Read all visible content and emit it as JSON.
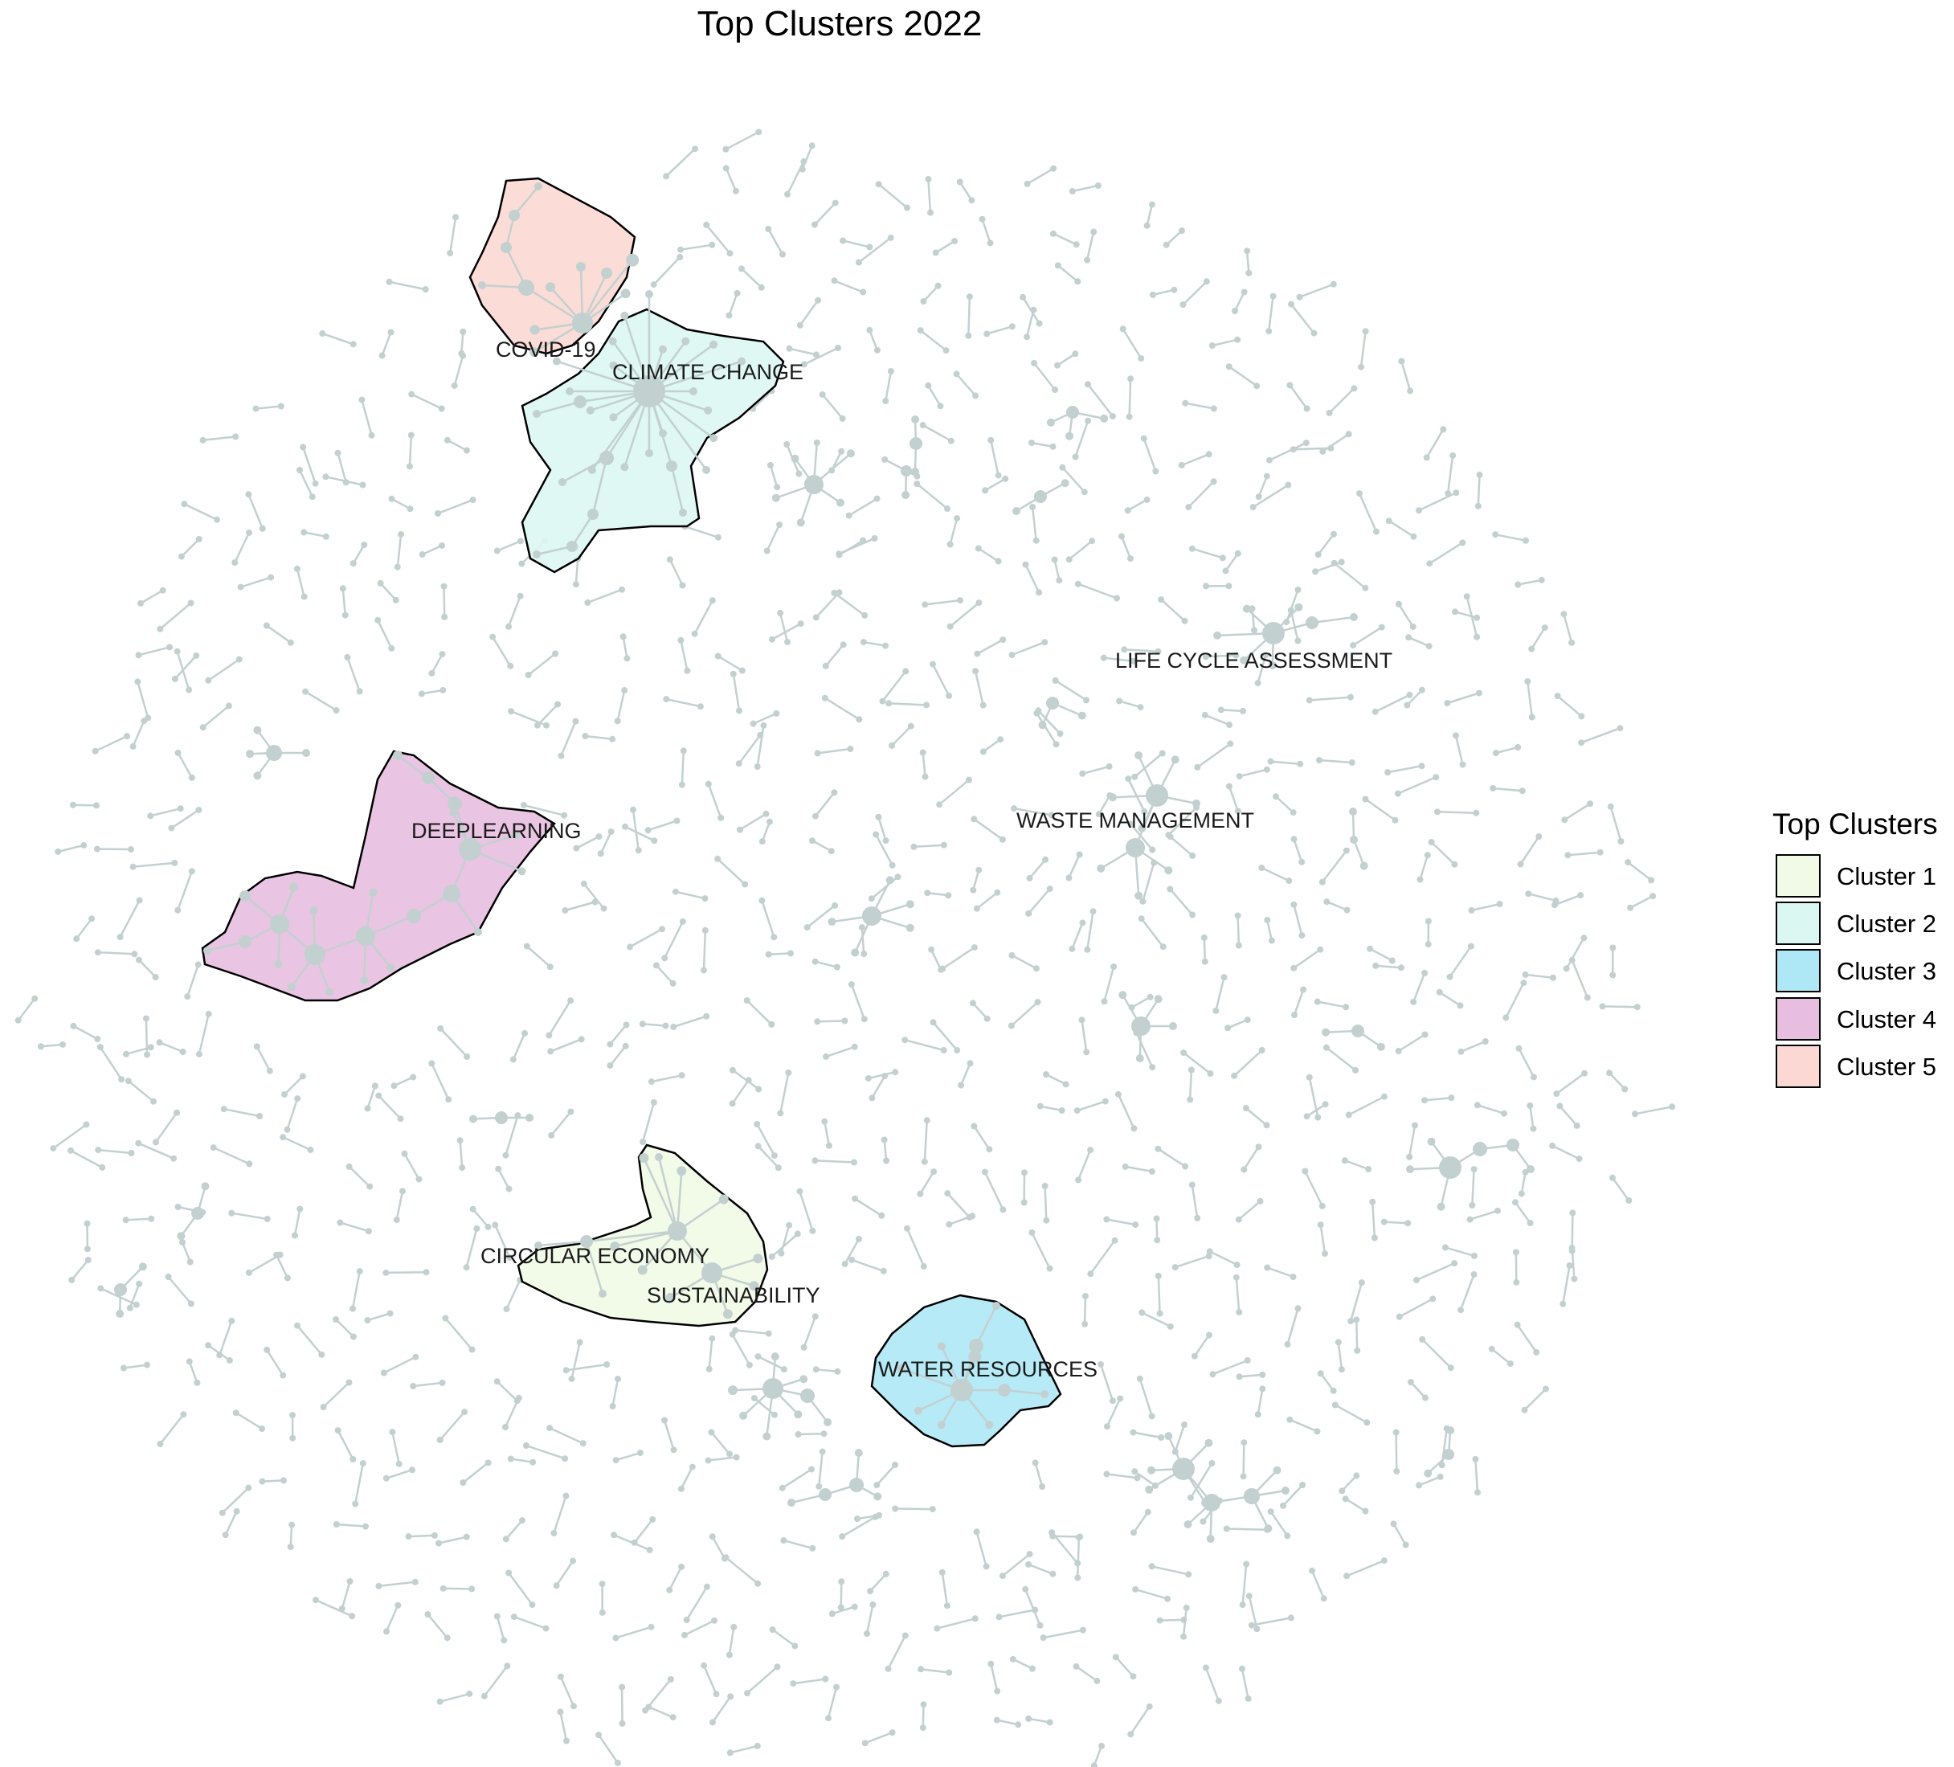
{
  "figure": {
    "title": "Top Clusters 2022",
    "node_color": "#c3d0d0",
    "outline_color": "#000000"
  },
  "legend": {
    "title": "Top Clusters",
    "position": "right",
    "items": [
      {
        "label": "Cluster 1",
        "color": "#f1fae6"
      },
      {
        "label": "Cluster 2",
        "color": "#dbf7f2"
      },
      {
        "label": "Cluster 3",
        "color": "#aee8f6"
      },
      {
        "label": "Cluster 4",
        "color": "#e8bee0"
      },
      {
        "label": "Cluster 5",
        "color": "#fbd8d3"
      }
    ]
  },
  "clusters": [
    {
      "id": 1,
      "labels": [
        "CIRCULAR ECONOMY",
        "SUSTAINABILITY"
      ]
    },
    {
      "id": 2,
      "labels": [
        "CLIMATE CHANGE"
      ]
    },
    {
      "id": 3,
      "labels": [
        "WATER RESOURCES"
      ]
    },
    {
      "id": 4,
      "labels": [
        "DEEPLEARNING"
      ]
    },
    {
      "id": 5,
      "labels": [
        "COVID-19"
      ]
    }
  ],
  "unclustered_labels": [
    "LIFE CYCLE ASSESSMENT",
    "WASTE MANAGEMENT"
  ]
}
